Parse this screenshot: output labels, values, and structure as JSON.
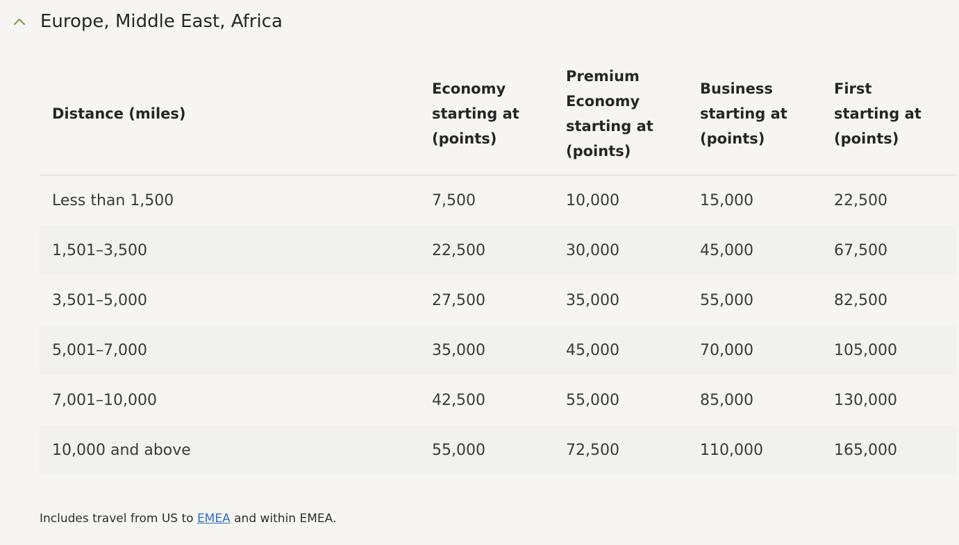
{
  "section": {
    "title": "Europe, Middle East, Africa",
    "chevron_icon": "chevron-up-icon",
    "accent_color": "#7a9a4a"
  },
  "table": {
    "headers": {
      "distance": "Distance (miles)",
      "economy": [
        "Economy",
        "starting at",
        "(points)"
      ],
      "premium": [
        "Premium",
        "Economy",
        "starting at",
        "(points)"
      ],
      "business": [
        "Business",
        "starting at",
        "(points)"
      ],
      "first": [
        "First",
        "starting at",
        "(points)"
      ]
    },
    "rows": [
      {
        "distance": "Less than 1,500",
        "economy": "7,500",
        "premium": "10,000",
        "business": "15,000",
        "first": "22,500"
      },
      {
        "distance": "1,501–3,500",
        "economy": "22,500",
        "premium": "30,000",
        "business": "45,000",
        "first": "67,500"
      },
      {
        "distance": "3,501–5,000",
        "economy": "27,500",
        "premium": "35,000",
        "business": "55,000",
        "first": "82,500"
      },
      {
        "distance": "5,001–7,000",
        "economy": "35,000",
        "premium": "45,000",
        "business": "70,000",
        "first": "105,000"
      },
      {
        "distance": "7,001–10,000",
        "economy": "42,500",
        "premium": "55,000",
        "business": "85,000",
        "first": "130,000"
      },
      {
        "distance": "10,000 and above",
        "economy": "55,000",
        "premium": "72,500",
        "business": "110,000",
        "first": "165,000"
      }
    ]
  },
  "footnote": {
    "prefix": "Includes travel from US to ",
    "link_text": "EMEA",
    "suffix": " and within EMEA."
  }
}
